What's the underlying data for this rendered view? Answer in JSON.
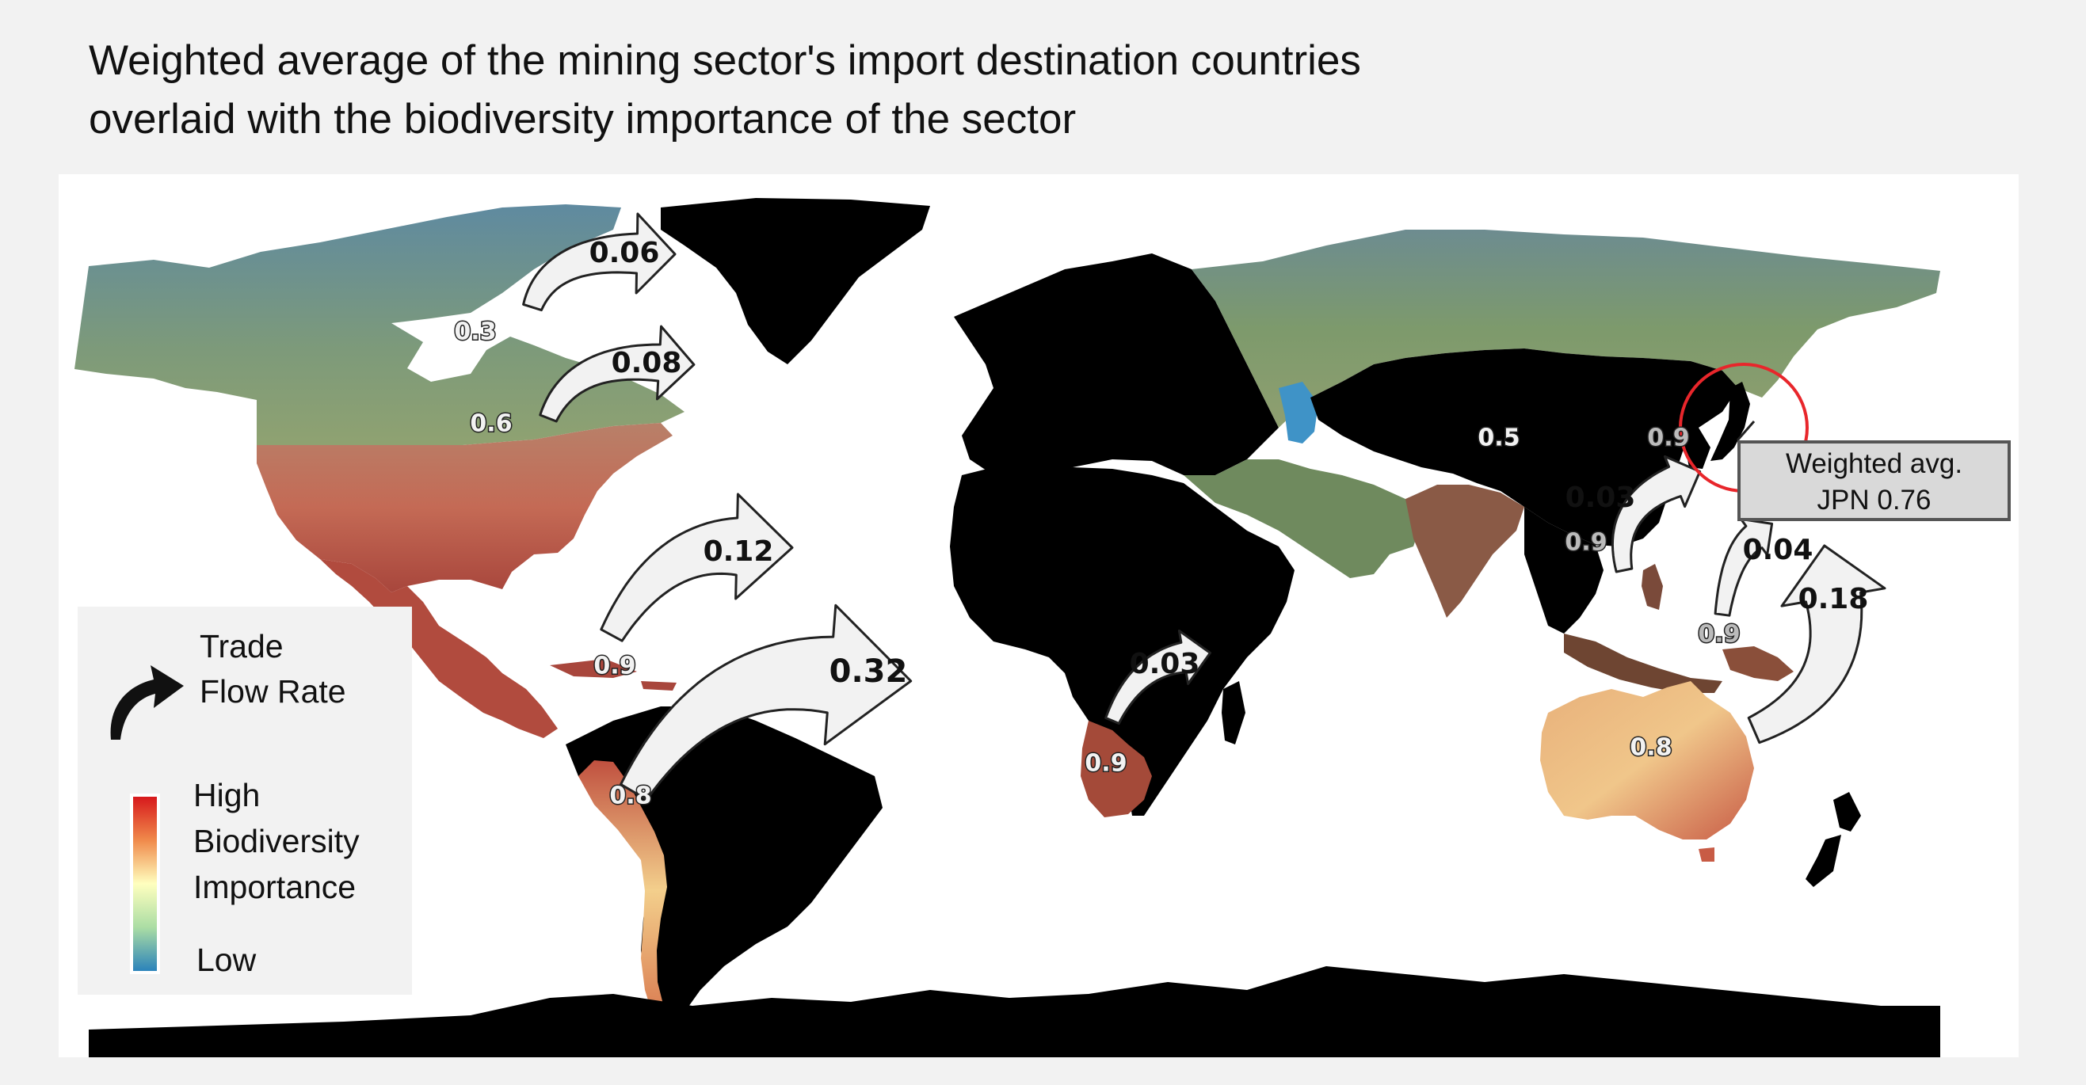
{
  "title": {
    "line1": "Weighted average of the mining sector's import destination countries",
    "line2": "overlaid with the biodiversity importance of the sector"
  },
  "colors": {
    "background": "#f2f2f2",
    "importer_countries": "#000000",
    "callout_circle": "#e8262b",
    "high": "#d7191c",
    "mid": "#ffffbf",
    "low": "#2b83ba"
  },
  "country_values": {
    "canada": "0.3",
    "usa": "0.6",
    "china": "0.5",
    "japan": "0.9",
    "philippines": "0.9",
    "peru": "0.9",
    "chile": "0.8",
    "south_africa": "0.9",
    "papua_new_guinea": "0.9",
    "australia": "0.8"
  },
  "trade_flows": {
    "canada_north": "0.06",
    "canada_south": "0.08",
    "peru": "0.12",
    "chile": "0.32",
    "south_africa": "0.03",
    "philippines": "0.03",
    "png": "0.04",
    "australia": "0.18"
  },
  "callout": {
    "line1": "Weighted avg.",
    "line2": "JPN  0.76"
  },
  "legend": {
    "trade_line1": "Trade",
    "trade_line2": "Flow Rate",
    "high": "High",
    "biodiversity": "Biodiversity",
    "importance": "Importance",
    "low": "Low"
  }
}
